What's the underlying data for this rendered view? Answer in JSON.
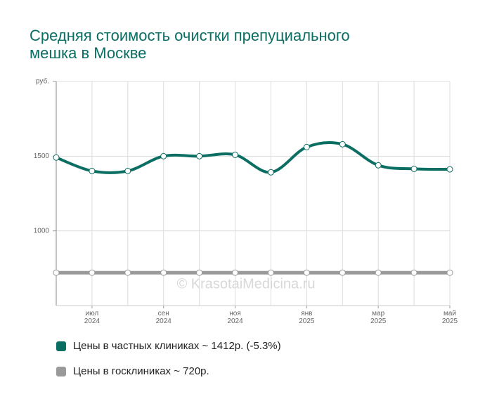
{
  "chart_data": {
    "type": "line",
    "title": [
      "Средняя стоимость очистки препуциального",
      "мешка в Москве"
    ],
    "categories": [
      null,
      "июл 2024",
      null,
      "сен 2024",
      null,
      "ноя 2024",
      null,
      "янв 2025",
      null,
      "мар 2025",
      null,
      "май 2025"
    ],
    "series": [
      {
        "name": "Цены в частных клиниках ~ 1412р. (-5.3%)",
        "color": "#0b6e63",
        "values": [
          1491,
          1401,
          1401,
          1500,
          1500,
          1509,
          1392,
          1561,
          1580,
          1439,
          1415,
          1412
        ]
      },
      {
        "name": "Цены в госклиниках ~ 720р.",
        "color": "#9a9a9a",
        "values": [
          720,
          720,
          720,
          720,
          720,
          720,
          720,
          720,
          720,
          720,
          720,
          720
        ]
      }
    ],
    "ylim": [
      500,
      2000
    ],
    "yticks": [
      1000,
      1500,
      {
        "value": 2000,
        "label": "руб."
      }
    ],
    "grid": true,
    "watermark": "© KrasotaiMedicina.ru"
  }
}
